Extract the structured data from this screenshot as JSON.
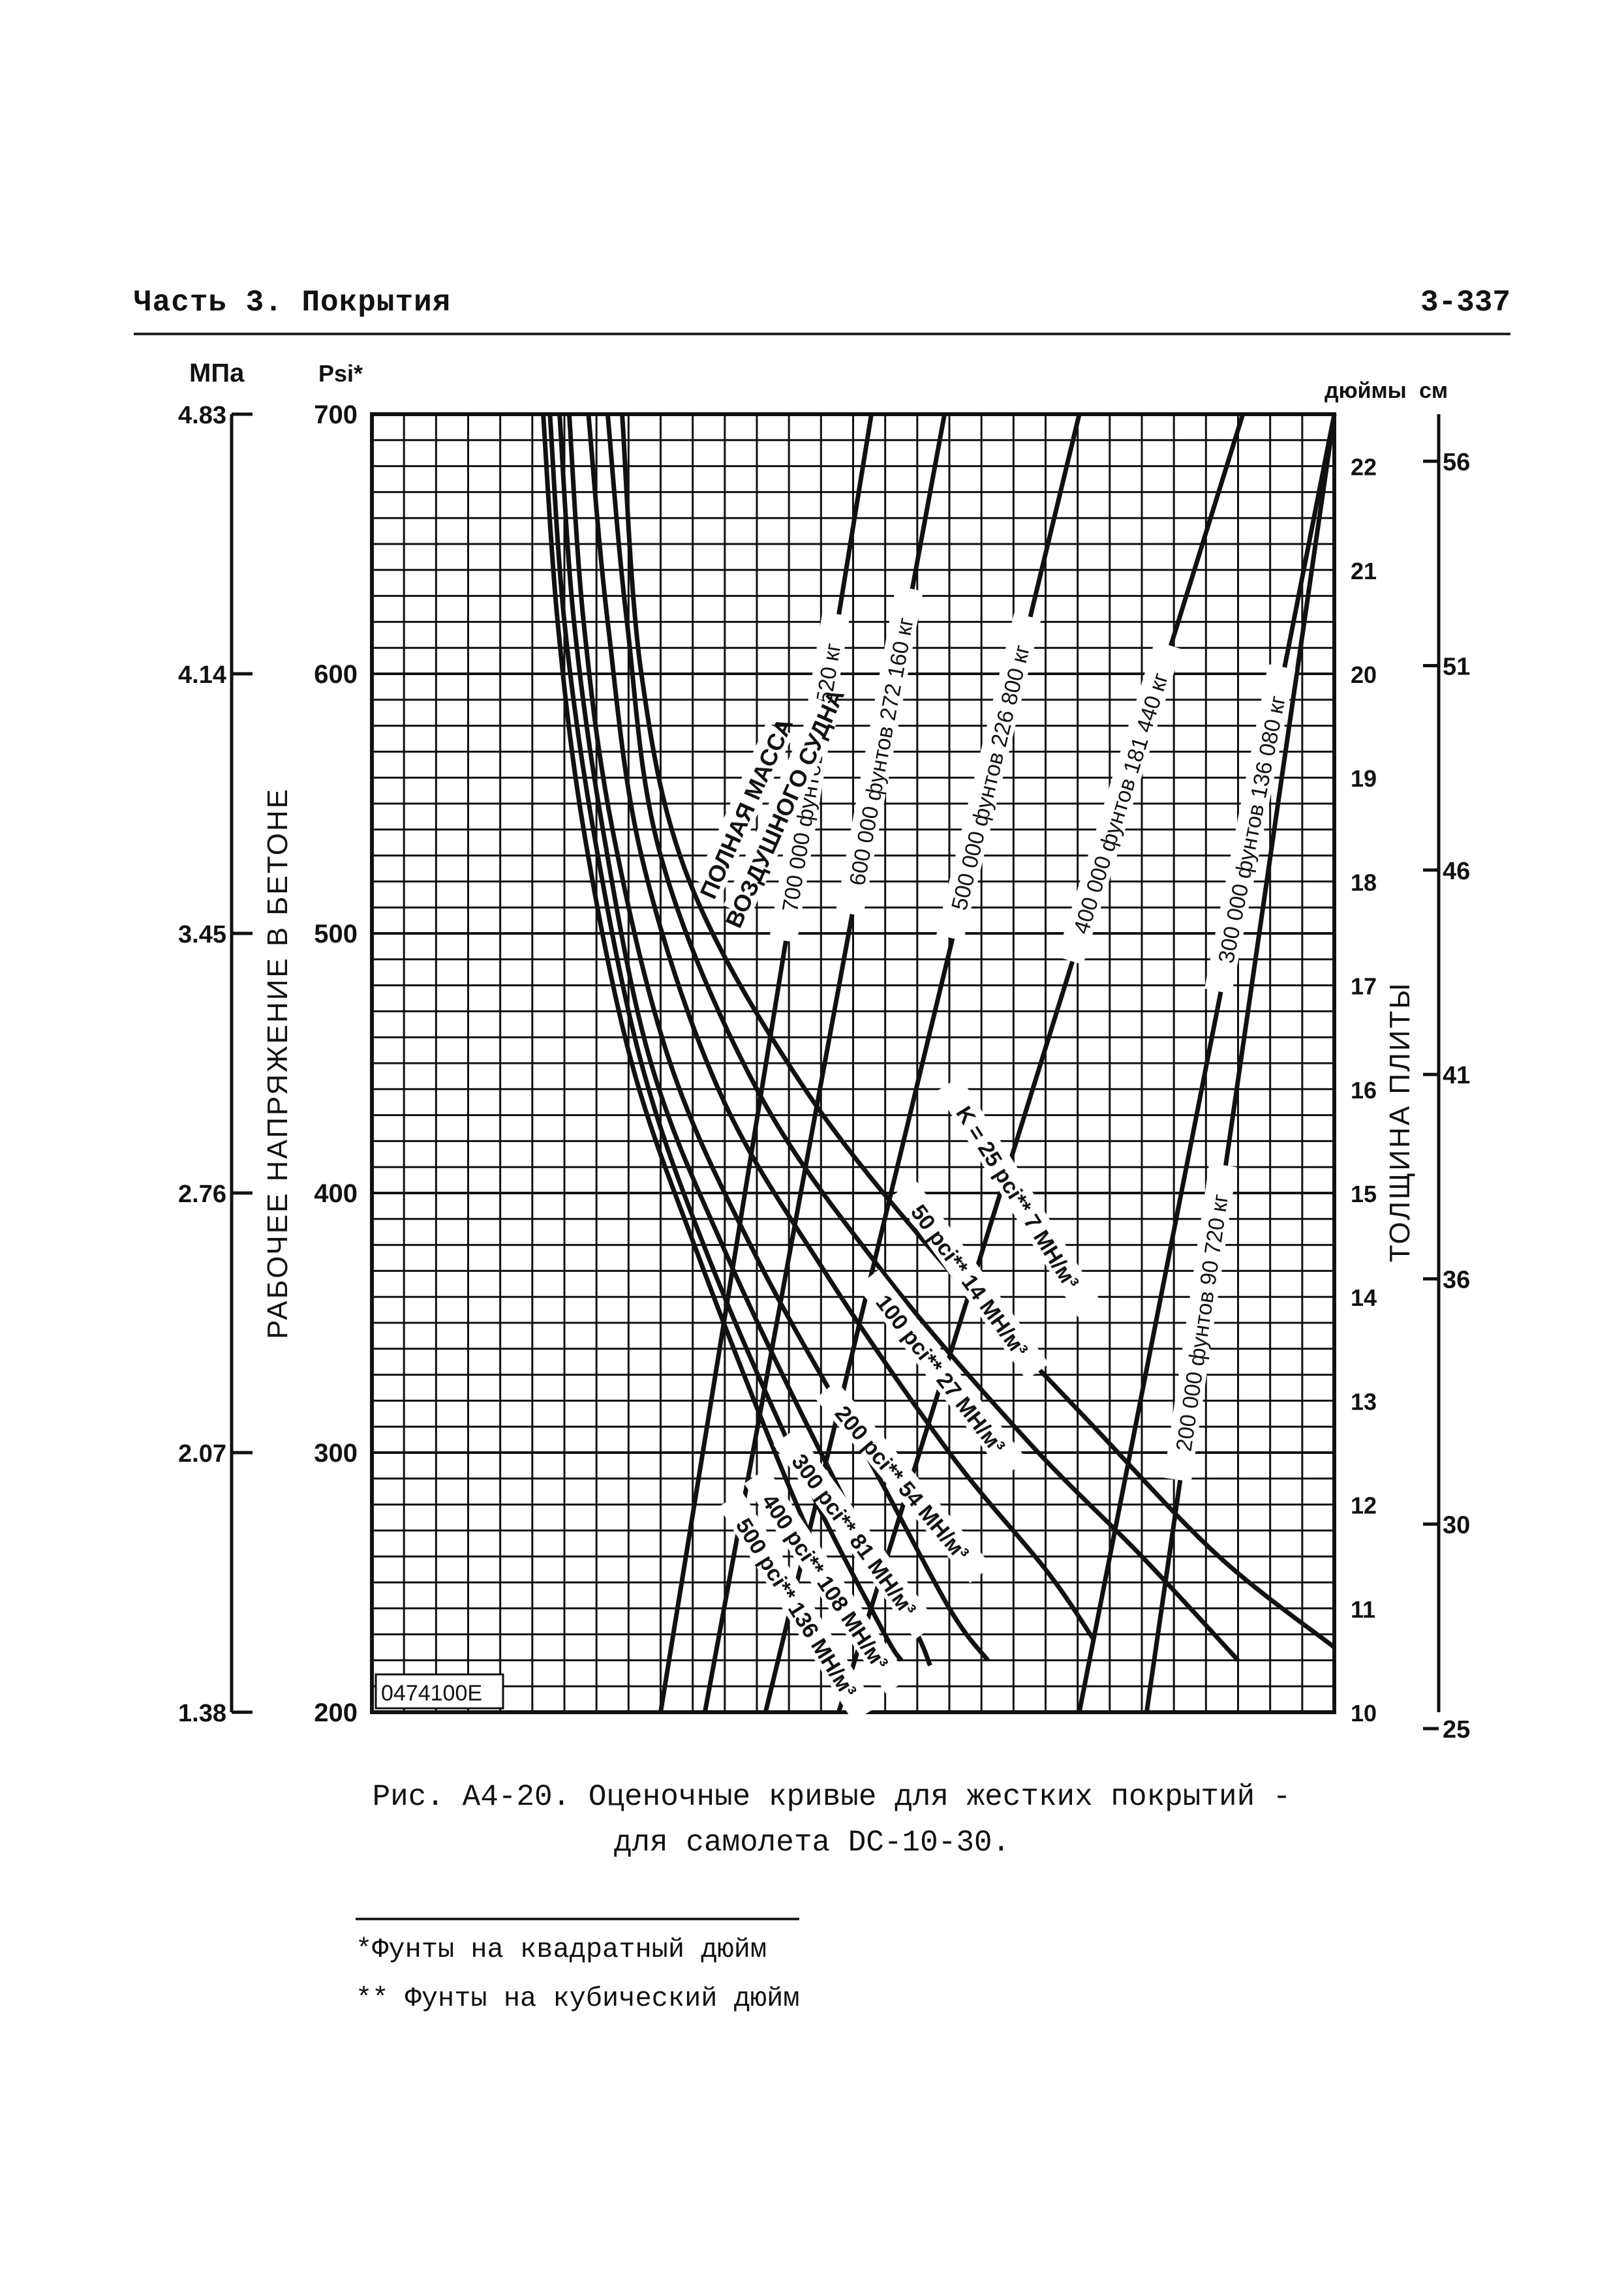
{
  "header": {
    "left": "Часть 3.  Покрытия",
    "right": "3-337"
  },
  "colors": {
    "ink": "#111111",
    "paper": "#ffffff",
    "label_bg": "#ffffff"
  },
  "chart_data": {
    "type": "line",
    "code": "0474100E",
    "y_axis": {
      "unit": "Psi*",
      "range": [
        200,
        700
      ],
      "ticks": [
        "200",
        "300",
        "400",
        "500",
        "600",
        "700"
      ],
      "mpa_unit": "МПа",
      "mpa_ticks": [
        "1.38",
        "2.07",
        "2.76",
        "3.45",
        "4.14",
        "4.83"
      ],
      "label": "РАБОЧЕЕ НАПРЯЖЕНИЕ В БЕТОНЕ"
    },
    "thickness_axis": {
      "unit_in": "дюймы",
      "unit_cm": "см",
      "range_in": [
        10,
        22.5
      ],
      "inch_ticks": [
        "10",
        "11",
        "12",
        "13",
        "14",
        "15",
        "16",
        "17",
        "18",
        "19",
        "20",
        "21",
        "22"
      ],
      "cm_ticks": [
        {
          "v": 25,
          "t": "25"
        },
        {
          "v": 30,
          "t": "30"
        },
        {
          "v": 36,
          "t": "36"
        },
        {
          "v": 41,
          "t": "41"
        },
        {
          "v": 46,
          "t": "46"
        },
        {
          "v": 51,
          "t": "51"
        },
        {
          "v": 56,
          "t": "56"
        }
      ],
      "label": "ТОЛЩИНА ПЛИТЫ"
    },
    "x_grid_range": [
      0,
      1
    ],
    "weight_group_label": [
      "ПОЛНАЯ МАССА",
      "ВОЗДУШНОГО СУДНА"
    ],
    "weight_lines": [
      {
        "label": "700 000 фунтов 317 520 кг",
        "x0": 0.3,
        "x1": 0.519
      },
      {
        "label": "600 000 фунтов 272 160 кг",
        "x0": 0.346,
        "x1": 0.595
      },
      {
        "label": "500 000 фунтов 226 800 кг",
        "x0": 0.409,
        "x1": 0.735
      },
      {
        "label": "400 000 фунтов 181 440 кг",
        "x0": 0.485,
        "x1": 0.905
      },
      {
        "label": "300 000 фунтов 136 080 кг",
        "x0": 0.735,
        "x1": 1.0
      },
      {
        "label": "200 000 фунтов 90 720 кг",
        "x0": 0.805,
        "x1": 1.0
      }
    ],
    "k_curves": [
      {
        "label": "K = 25 pci** 7 МН/м³",
        "points": [
          [
            0.26,
            700
          ],
          [
            0.28,
            600
          ],
          [
            0.33,
            520
          ],
          [
            0.45,
            440
          ],
          [
            0.6,
            370
          ],
          [
            0.75,
            310
          ],
          [
            0.88,
            260
          ],
          [
            1.0,
            225
          ]
        ]
      },
      {
        "label": "50 pci** 14 МН/м³",
        "points": [
          [
            0.245,
            700
          ],
          [
            0.265,
            620
          ],
          [
            0.3,
            530
          ],
          [
            0.4,
            440
          ],
          [
            0.53,
            370
          ],
          [
            0.68,
            305
          ],
          [
            0.8,
            260
          ],
          [
            0.9,
            220
          ]
        ]
      },
      {
        "label": "100 pci** 27 МН/м³",
        "points": [
          [
            0.225,
            700
          ],
          [
            0.245,
            620
          ],
          [
            0.28,
            530
          ],
          [
            0.36,
            440
          ],
          [
            0.47,
            370
          ],
          [
            0.6,
            300
          ],
          [
            0.7,
            255
          ],
          [
            0.75,
            228
          ]
        ]
      },
      {
        "label": "200 pci** 54 МН/м³",
        "points": [
          [
            0.205,
            700
          ],
          [
            0.22,
            620
          ],
          [
            0.25,
            540
          ],
          [
            0.31,
            450
          ],
          [
            0.4,
            375
          ],
          [
            0.52,
            295
          ],
          [
            0.6,
            240
          ],
          [
            0.64,
            220
          ]
        ]
      },
      {
        "label": "300 pci** 81 МН/м³",
        "points": [
          [
            0.195,
            700
          ],
          [
            0.21,
            620
          ],
          [
            0.24,
            540
          ],
          [
            0.29,
            450
          ],
          [
            0.37,
            375
          ],
          [
            0.48,
            290
          ],
          [
            0.56,
            235
          ],
          [
            0.58,
            218
          ]
        ]
      },
      {
        "label": "400 pci** 108 МН/м³",
        "points": [
          [
            0.185,
            700
          ],
          [
            0.2,
            620
          ],
          [
            0.23,
            540
          ],
          [
            0.28,
            450
          ],
          [
            0.35,
            375
          ],
          [
            0.45,
            290
          ],
          [
            0.53,
            232
          ],
          [
            0.55,
            220
          ]
        ]
      },
      {
        "label": "500 pci** 136 МН/м³",
        "points": [
          [
            0.178,
            700
          ],
          [
            0.193,
            620
          ],
          [
            0.22,
            540
          ],
          [
            0.27,
            450
          ],
          [
            0.34,
            375
          ],
          [
            0.43,
            290
          ],
          [
            0.5,
            232
          ],
          [
            0.52,
            222
          ]
        ]
      }
    ]
  },
  "caption": {
    "line1": "Рис. А4-20.  Оценочные кривые для жестких покрытий -",
    "line2": "для самолета DC-10-30."
  },
  "footnotes": {
    "f1": "*Фунты на квадратный дюйм",
    "f2": "** Фунты на кубический дюйм"
  }
}
